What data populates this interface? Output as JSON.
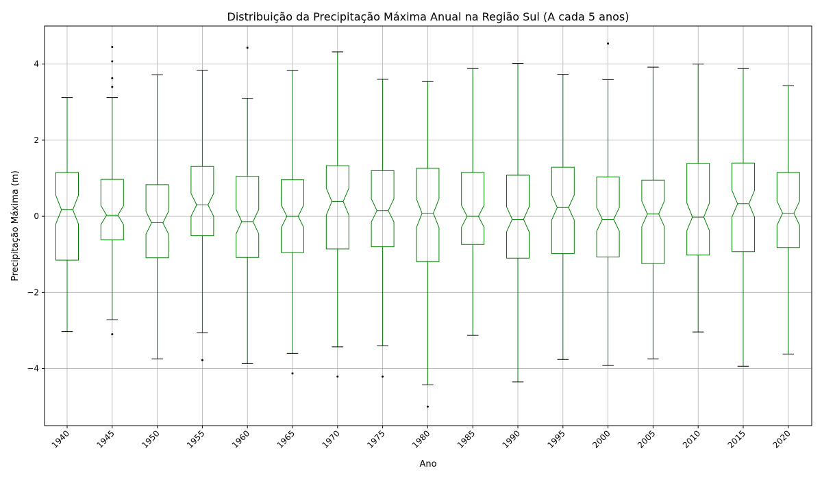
{
  "chart_data": {
    "type": "boxplot",
    "title": "Distribuição da Precipitação Máxima Anual na Região Sul (A cada 5 anos)",
    "xlabel": "Ano",
    "ylabel": "Precipitação Máxima (m)",
    "ylim": [
      -5.5,
      5.0
    ],
    "yticks": [
      -4,
      -2,
      0,
      2,
      4
    ],
    "grid": true,
    "notched": true,
    "box_color": "#008000",
    "whisker_color": "#008000",
    "cap_color": "#000000",
    "median_color": "#008000",
    "outlier_color": "#000000",
    "categories": [
      "1940",
      "1945",
      "1950",
      "1955",
      "1960",
      "1965",
      "1970",
      "1975",
      "1980",
      "1985",
      "1990",
      "1995",
      "2000",
      "2005",
      "2010",
      "2015",
      "2020"
    ],
    "boxes": [
      {
        "whislo": -3.03,
        "q1": -1.15,
        "med": 0.17,
        "q3": 1.15,
        "whishi": 3.12,
        "notch": [
          -0.2,
          0.55
        ],
        "fliers": []
      },
      {
        "whislo": -2.72,
        "q1": -0.62,
        "med": 0.03,
        "q3": 0.97,
        "whishi": 3.12,
        "notch": [
          -0.22,
          0.28
        ],
        "fliers": [
          -3.1,
          3.4,
          3.63,
          4.07,
          4.45
        ]
      },
      {
        "whislo": -3.75,
        "q1": -1.09,
        "med": -0.17,
        "q3": 0.83,
        "whishi": 3.72,
        "notch": [
          -0.47,
          0.13
        ],
        "fliers": []
      },
      {
        "whislo": -3.06,
        "q1": -0.51,
        "med": 0.3,
        "q3": 1.31,
        "whishi": 3.84,
        "notch": [
          0.0,
          0.6
        ],
        "fliers": [
          -3.78
        ]
      },
      {
        "whislo": -3.87,
        "q1": -1.08,
        "med": -0.14,
        "q3": 1.05,
        "whishi": 3.1,
        "notch": [
          -0.46,
          0.18
        ],
        "fliers": [
          4.43
        ]
      },
      {
        "whislo": -3.6,
        "q1": -0.95,
        "med": 0.0,
        "q3": 0.96,
        "whishi": 3.83,
        "notch": [
          -0.3,
          0.3
        ],
        "fliers": [
          -4.13
        ]
      },
      {
        "whislo": -3.43,
        "q1": -0.86,
        "med": 0.39,
        "q3": 1.33,
        "whishi": 4.32,
        "notch": [
          0.03,
          0.74
        ],
        "fliers": [
          -4.21
        ]
      },
      {
        "whislo": -3.4,
        "q1": -0.8,
        "med": 0.15,
        "q3": 1.2,
        "whishi": 3.6,
        "notch": [
          -0.15,
          0.46
        ],
        "fliers": [
          -4.21
        ]
      },
      {
        "whislo": -4.43,
        "q1": -1.19,
        "med": 0.08,
        "q3": 1.26,
        "whishi": 3.54,
        "notch": [
          -0.3,
          0.46
        ],
        "fliers": [
          -5.0
        ]
      },
      {
        "whislo": -3.13,
        "q1": -0.74,
        "med": 0.0,
        "q3": 1.15,
        "whishi": 3.88,
        "notch": [
          -0.29,
          0.29
        ],
        "fliers": []
      },
      {
        "whislo": -4.35,
        "q1": -1.1,
        "med": -0.08,
        "q3": 1.08,
        "whishi": 4.02,
        "notch": [
          -0.41,
          0.25
        ],
        "fliers": []
      },
      {
        "whislo": -3.76,
        "q1": -0.98,
        "med": 0.23,
        "q3": 1.29,
        "whishi": 3.73,
        "notch": [
          -0.1,
          0.56
        ],
        "fliers": []
      },
      {
        "whislo": -3.92,
        "q1": -1.07,
        "med": -0.08,
        "q3": 1.03,
        "whishi": 3.59,
        "notch": [
          -0.39,
          0.23
        ],
        "fliers": [
          4.54
        ]
      },
      {
        "whislo": -3.75,
        "q1": -1.24,
        "med": 0.06,
        "q3": 0.95,
        "whishi": 3.92,
        "notch": [
          -0.27,
          0.4
        ],
        "fliers": []
      },
      {
        "whislo": -3.04,
        "q1": -1.02,
        "med": -0.02,
        "q3": 1.39,
        "whishi": 4.0,
        "notch": [
          -0.38,
          0.35
        ],
        "fliers": []
      },
      {
        "whislo": -3.94,
        "q1": -0.93,
        "med": 0.33,
        "q3": 1.4,
        "whishi": 3.88,
        "notch": [
          -0.02,
          0.68
        ],
        "fliers": []
      },
      {
        "whislo": -3.62,
        "q1": -0.82,
        "med": 0.08,
        "q3": 1.15,
        "whishi": 3.43,
        "notch": [
          -0.24,
          0.4
        ],
        "fliers": []
      }
    ]
  }
}
